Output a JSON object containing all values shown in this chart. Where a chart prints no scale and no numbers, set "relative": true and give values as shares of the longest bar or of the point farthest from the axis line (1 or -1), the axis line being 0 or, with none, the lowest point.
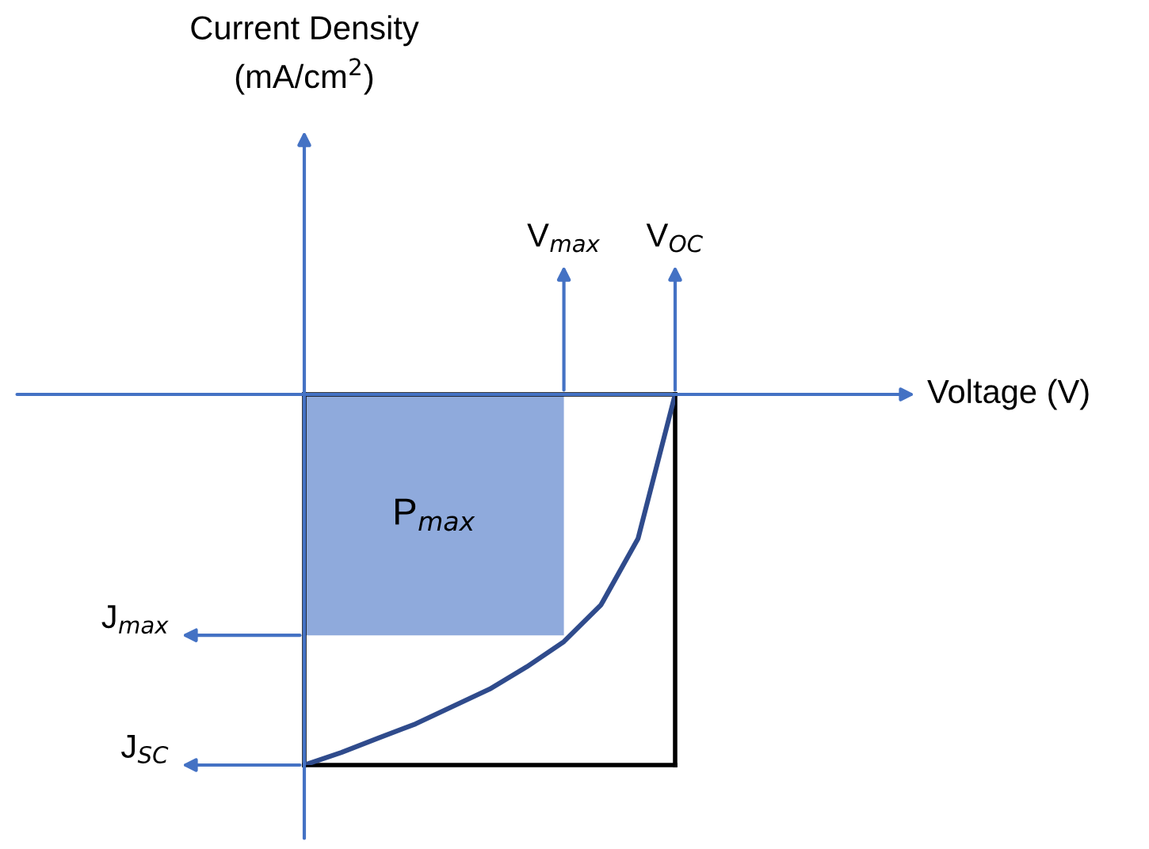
{
  "chart_data": {
    "type": "line",
    "relative": true,
    "categories": [
      null,
      null,
      null,
      null,
      null,
      null,
      null,
      null,
      null,
      null,
      null
    ],
    "series": [
      {
        "type": "area",
        "name": "P$_{max}$",
        "color": "#8faadc",
        "values": [
          -0.65,
          -0.65,
          -0.65,
          -0.65,
          -0.65,
          -0.65,
          -0.65,
          -0.65,
          null,
          null,
          null
        ]
      },
      {
        "color": "#2f4b8c",
        "values": [
          -1,
          -0.966,
          -0.927,
          -0.889,
          -0.842,
          -0.795,
          -0.735,
          -0.667,
          -0.568,
          -0.389,
          0
        ]
      }
    ],
    "annotations": [
      "Current Density\n(mA/cm$^{2}$)",
      "Voltage (V)",
      "V$_{max}$",
      "V$_{OC}$",
      "J$_{max}$",
      "J$_{SC}$"
    ],
    "marker": "none",
    "line_style": "solid"
  }
}
